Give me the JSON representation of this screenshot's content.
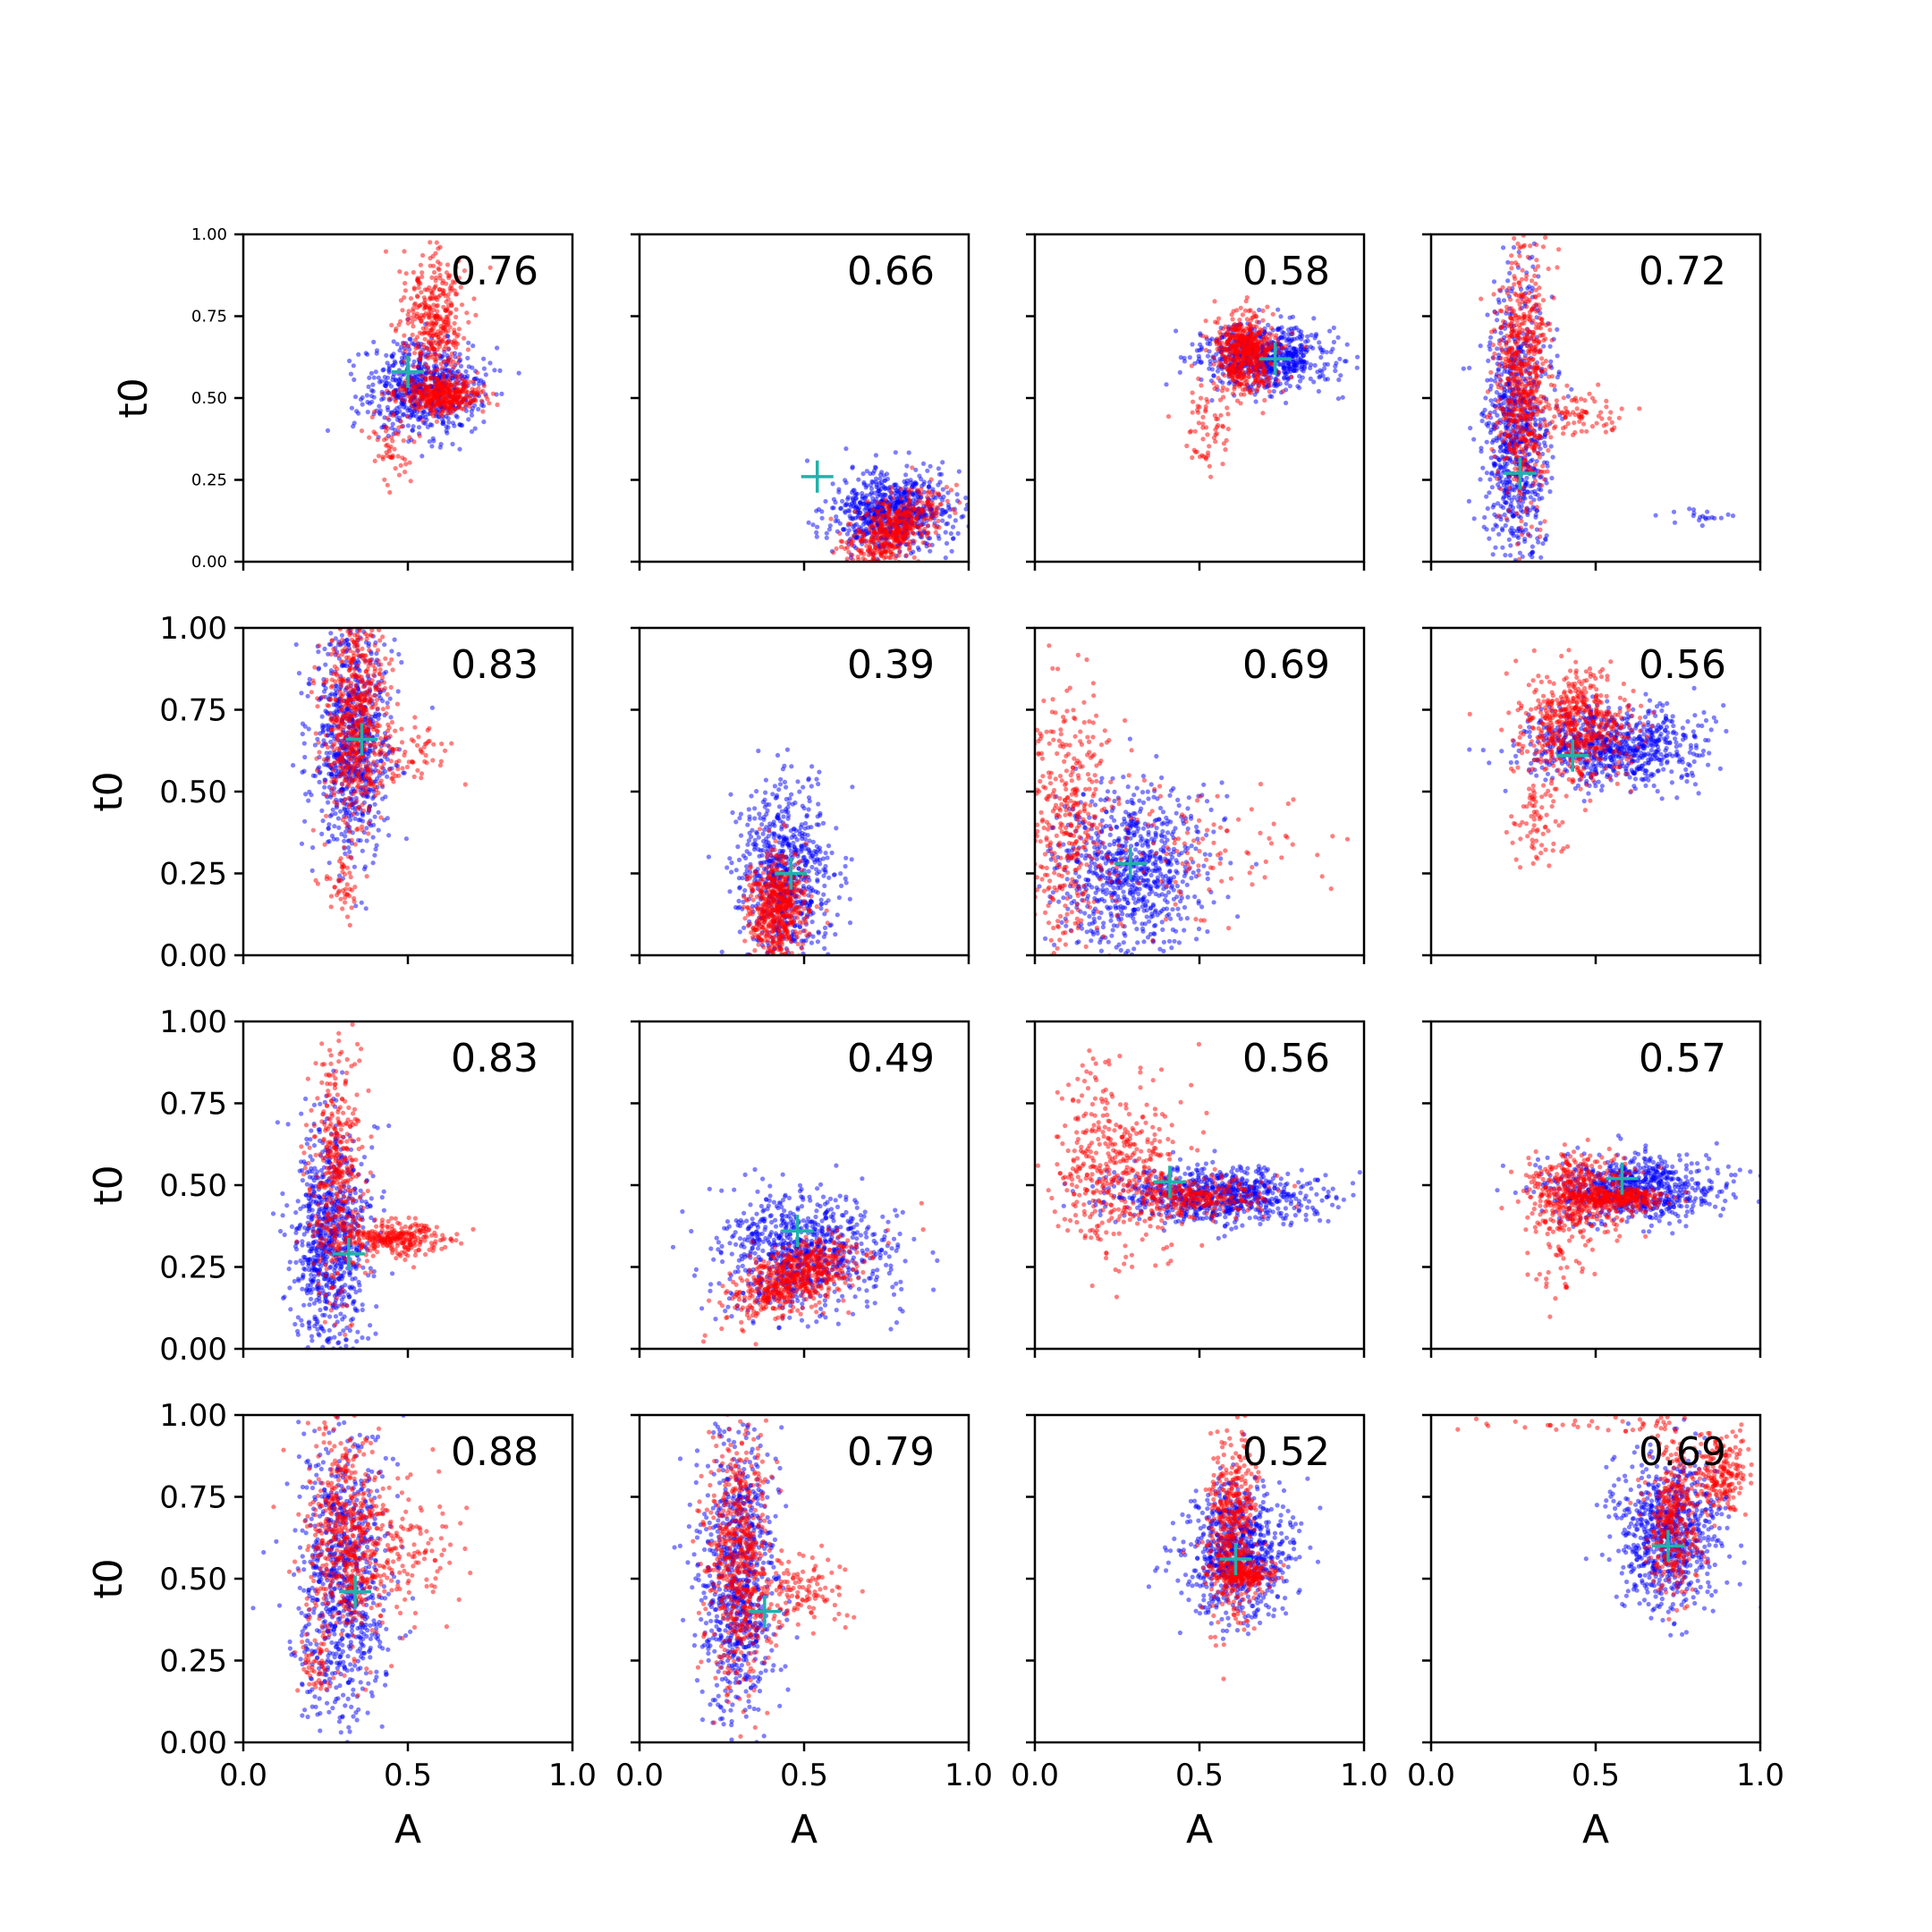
{
  "figure": {
    "title": "",
    "colors": {
      "blue": "#0000ff",
      "red": "#ff0000",
      "marker": "#20b2aa",
      "axis": "#000000"
    }
  },
  "chart_data": [
    {
      "type": "scatter",
      "row": 0,
      "col": 0,
      "xlabel": "",
      "ylabel": "t0",
      "xlim": [
        0,
        1
      ],
      "ylim": [
        0,
        1
      ],
      "annotation": "0.76",
      "xticks": [
        "0.0",
        "0.5",
        "1.0"
      ],
      "yticks": [
        "0.00",
        "0.25",
        "0.50",
        "0.75",
        "1.00"
      ],
      "marker": {
        "x": 0.5,
        "y": 0.58
      },
      "series": [
        {
          "name": "blue",
          "clusters": [
            {
              "cx": 0.55,
              "cy": 0.53,
              "sx": 0.09,
              "sy": 0.07,
              "n": 650
            }
          ]
        },
        {
          "name": "red",
          "clusters": [
            {
              "cx": 0.6,
              "cy": 0.51,
              "sx": 0.06,
              "sy": 0.025,
              "n": 350
            },
            {
              "cx": 0.58,
              "cy": 0.72,
              "sx": 0.05,
              "sy": 0.11,
              "n": 380
            },
            {
              "cx": 0.45,
              "cy": 0.35,
              "sx": 0.03,
              "sy": 0.07,
              "n": 60
            }
          ]
        }
      ]
    },
    {
      "type": "scatter",
      "row": 0,
      "col": 1,
      "xlabel": "",
      "ylabel": "",
      "xlim": [
        0,
        1
      ],
      "ylim": [
        0,
        1
      ],
      "annotation": "0.66",
      "xticks": [
        "0.0",
        "0.5",
        "1.0"
      ],
      "yticks": [],
      "marker": {
        "x": 0.54,
        "y": 0.26
      },
      "series": [
        {
          "name": "blue",
          "clusters": [
            {
              "cx": 0.76,
              "cy": 0.15,
              "sx": 0.09,
              "sy": 0.06,
              "n": 750
            }
          ]
        },
        {
          "name": "red",
          "clusters": [
            {
              "cx": 0.77,
              "cy": 0.1,
              "sx": 0.07,
              "sy": 0.045,
              "n": 480,
              "slope": 0.45
            }
          ]
        }
      ]
    },
    {
      "type": "scatter",
      "row": 0,
      "col": 2,
      "xlabel": "",
      "ylabel": "",
      "xlim": [
        0,
        1
      ],
      "ylim": [
        0,
        1
      ],
      "annotation": "0.58",
      "xticks": [
        "0.0",
        "0.5",
        "1.0"
      ],
      "yticks": [],
      "marker": {
        "x": 0.73,
        "y": 0.62
      },
      "series": [
        {
          "name": "blue",
          "clusters": [
            {
              "cx": 0.7,
              "cy": 0.62,
              "sx": 0.1,
              "sy": 0.05,
              "n": 700
            }
          ]
        },
        {
          "name": "red",
          "clusters": [
            {
              "cx": 0.64,
              "cy": 0.64,
              "sx": 0.045,
              "sy": 0.06,
              "n": 550
            },
            {
              "cx": 0.53,
              "cy": 0.4,
              "sx": 0.04,
              "sy": 0.07,
              "n": 60
            }
          ]
        }
      ]
    },
    {
      "type": "scatter",
      "row": 0,
      "col": 3,
      "xlabel": "",
      "ylabel": "",
      "xlim": [
        0,
        1
      ],
      "ylim": [
        0,
        1
      ],
      "annotation": "0.72",
      "xticks": [
        "0.0",
        "0.5",
        "1.0"
      ],
      "yticks": [],
      "marker": {
        "x": 0.27,
        "y": 0.27
      },
      "series": [
        {
          "name": "blue",
          "clusters": [
            {
              "cx": 0.26,
              "cy": 0.4,
              "sx": 0.05,
              "sy": 0.22,
              "n": 800
            },
            {
              "cx": 0.8,
              "cy": 0.14,
              "sx": 0.06,
              "sy": 0.015,
              "n": 20
            }
          ]
        },
        {
          "name": "red",
          "clusters": [
            {
              "cx": 0.28,
              "cy": 0.55,
              "sx": 0.04,
              "sy": 0.2,
              "n": 650
            },
            {
              "cx": 0.45,
              "cy": 0.45,
              "sx": 0.08,
              "sy": 0.04,
              "n": 80
            }
          ]
        }
      ]
    },
    {
      "type": "scatter",
      "row": 1,
      "col": 0,
      "xlabel": "",
      "ylabel": "t0",
      "xlim": [
        0,
        1
      ],
      "ylim": [
        0,
        1
      ],
      "annotation": "0.83",
      "xticks": [
        "0.0",
        "0.5",
        "1.0"
      ],
      "yticks": [
        "0.00",
        "0.25",
        "0.50",
        "0.75",
        "1.00"
      ],
      "marker": {
        "x": 0.36,
        "y": 0.66
      },
      "series": [
        {
          "name": "blue",
          "clusters": [
            {
              "cx": 0.33,
              "cy": 0.65,
              "sx": 0.06,
              "sy": 0.17,
              "n": 800
            }
          ]
        },
        {
          "name": "red",
          "clusters": [
            {
              "cx": 0.34,
              "cy": 0.72,
              "sx": 0.05,
              "sy": 0.15,
              "n": 600
            },
            {
              "cx": 0.3,
              "cy": 0.25,
              "sx": 0.03,
              "sy": 0.06,
              "n": 50
            },
            {
              "cx": 0.5,
              "cy": 0.6,
              "sx": 0.07,
              "sy": 0.06,
              "n": 60
            }
          ]
        }
      ]
    },
    {
      "type": "scatter",
      "row": 1,
      "col": 1,
      "xlabel": "",
      "ylabel": "",
      "xlim": [
        0,
        1
      ],
      "ylim": [
        0,
        1
      ],
      "annotation": "0.39",
      "xticks": [
        "0.0",
        "0.5",
        "1.0"
      ],
      "yticks": [],
      "marker": {
        "x": 0.46,
        "y": 0.25
      },
      "series": [
        {
          "name": "blue",
          "clusters": [
            {
              "cx": 0.44,
              "cy": 0.25,
              "sx": 0.07,
              "sy": 0.13,
              "n": 700
            }
          ]
        },
        {
          "name": "red",
          "clusters": [
            {
              "cx": 0.42,
              "cy": 0.14,
              "sx": 0.045,
              "sy": 0.08,
              "n": 550
            }
          ]
        }
      ]
    },
    {
      "type": "scatter",
      "row": 1,
      "col": 2,
      "xlabel": "",
      "ylabel": "",
      "xlim": [
        0,
        1
      ],
      "ylim": [
        0,
        1
      ],
      "annotation": "0.69",
      "xticks": [
        "0.0",
        "0.5",
        "1.0"
      ],
      "yticks": [],
      "marker": {
        "x": 0.29,
        "y": 0.28
      },
      "series": [
        {
          "name": "blue",
          "clusters": [
            {
              "cx": 0.28,
              "cy": 0.26,
              "sx": 0.12,
              "sy": 0.13,
              "n": 800
            }
          ]
        },
        {
          "name": "red",
          "clusters": [
            {
              "cx": 0.1,
              "cy": 0.4,
              "sx": 0.07,
              "sy": 0.25,
              "n": 400
            },
            {
              "cx": 0.45,
              "cy": 0.3,
              "sx": 0.2,
              "sy": 0.1,
              "n": 120
            }
          ]
        }
      ]
    },
    {
      "type": "scatter",
      "row": 1,
      "col": 3,
      "xlabel": "",
      "ylabel": "",
      "xlim": [
        0,
        1
      ],
      "ylim": [
        0,
        1
      ],
      "annotation": "0.56",
      "xticks": [
        "0.0",
        "0.5",
        "1.0"
      ],
      "yticks": [],
      "marker": {
        "x": 0.43,
        "y": 0.61
      },
      "series": [
        {
          "name": "blue",
          "clusters": [
            {
              "cx": 0.55,
              "cy": 0.64,
              "sx": 0.13,
              "sy": 0.06,
              "n": 750
            }
          ]
        },
        {
          "name": "red",
          "clusters": [
            {
              "cx": 0.44,
              "cy": 0.7,
              "sx": 0.08,
              "sy": 0.08,
              "n": 550
            },
            {
              "cx": 0.33,
              "cy": 0.42,
              "sx": 0.04,
              "sy": 0.1,
              "n": 80
            }
          ]
        }
      ]
    },
    {
      "type": "scatter",
      "row": 2,
      "col": 0,
      "xlabel": "",
      "ylabel": "t0",
      "xlim": [
        0,
        1
      ],
      "ylim": [
        0,
        1
      ],
      "annotation": "0.83",
      "xticks": [
        "0.0",
        "0.5",
        "1.0"
      ],
      "yticks": [
        "0.00",
        "0.25",
        "0.50",
        "0.75",
        "1.00"
      ],
      "marker": {
        "x": 0.32,
        "y": 0.29
      },
      "series": [
        {
          "name": "blue",
          "clusters": [
            {
              "cx": 0.27,
              "cy": 0.33,
              "sx": 0.06,
              "sy": 0.17,
              "n": 800
            }
          ]
        },
        {
          "name": "red",
          "clusters": [
            {
              "cx": 0.28,
              "cy": 0.55,
              "sx": 0.04,
              "sy": 0.2,
              "n": 400
            },
            {
              "cx": 0.45,
              "cy": 0.34,
              "sx": 0.08,
              "sy": 0.025,
              "n": 300
            }
          ]
        }
      ]
    },
    {
      "type": "scatter",
      "row": 2,
      "col": 1,
      "xlabel": "",
      "ylabel": "",
      "xlim": [
        0,
        1
      ],
      "ylim": [
        0,
        1
      ],
      "annotation": "0.49",
      "xticks": [
        "0.0",
        "0.5",
        "1.0"
      ],
      "yticks": [],
      "marker": {
        "x": 0.48,
        "y": 0.36
      },
      "series": [
        {
          "name": "blue",
          "clusters": [
            {
              "cx": 0.5,
              "cy": 0.3,
              "sx": 0.13,
              "sy": 0.09,
              "n": 800
            }
          ]
        },
        {
          "name": "red",
          "clusters": [
            {
              "cx": 0.48,
              "cy": 0.22,
              "sx": 0.1,
              "sy": 0.05,
              "n": 600,
              "slope": 0.35
            }
          ]
        }
      ]
    },
    {
      "type": "scatter",
      "row": 2,
      "col": 2,
      "xlabel": "",
      "ylabel": "",
      "xlim": [
        0,
        1
      ],
      "ylim": [
        0,
        1
      ],
      "annotation": "0.56",
      "xticks": [
        "0.0",
        "0.5",
        "1.0"
      ],
      "yticks": [],
      "marker": {
        "x": 0.41,
        "y": 0.51
      },
      "series": [
        {
          "name": "blue",
          "clusters": [
            {
              "cx": 0.55,
              "cy": 0.47,
              "sx": 0.15,
              "sy": 0.04,
              "n": 750
            }
          ]
        },
        {
          "name": "red",
          "clusters": [
            {
              "cx": 0.25,
              "cy": 0.55,
              "sx": 0.1,
              "sy": 0.13,
              "n": 450
            },
            {
              "cx": 0.5,
              "cy": 0.46,
              "sx": 0.1,
              "sy": 0.03,
              "n": 250
            }
          ]
        }
      ]
    },
    {
      "type": "scatter",
      "row": 2,
      "col": 3,
      "xlabel": "",
      "ylabel": "",
      "xlim": [
        0,
        1
      ],
      "ylim": [
        0,
        1
      ],
      "annotation": "0.57",
      "xticks": [
        "0.0",
        "0.5",
        "1.0"
      ],
      "yticks": [],
      "marker": {
        "x": 0.58,
        "y": 0.52
      },
      "series": [
        {
          "name": "blue",
          "clusters": [
            {
              "cx": 0.62,
              "cy": 0.49,
              "sx": 0.13,
              "sy": 0.05,
              "n": 750
            }
          ]
        },
        {
          "name": "red",
          "clusters": [
            {
              "cx": 0.45,
              "cy": 0.48,
              "sx": 0.08,
              "sy": 0.06,
              "n": 450
            },
            {
              "cx": 0.58,
              "cy": 0.46,
              "sx": 0.07,
              "sy": 0.015,
              "n": 250
            },
            {
              "cx": 0.4,
              "cy": 0.3,
              "sx": 0.04,
              "sy": 0.08,
              "n": 60
            }
          ]
        }
      ]
    },
    {
      "type": "scatter",
      "row": 3,
      "col": 0,
      "xlabel": "A",
      "ylabel": "t0",
      "xlim": [
        0,
        1
      ],
      "ylim": [
        0,
        1
      ],
      "annotation": "0.88",
      "xticks": [
        "0.0",
        "0.5",
        "1.0"
      ],
      "yticks": [
        "0.00",
        "0.25",
        "0.50",
        "0.75",
        "1.00"
      ],
      "marker": {
        "x": 0.34,
        "y": 0.46
      },
      "series": [
        {
          "name": "blue",
          "clusters": [
            {
              "cx": 0.3,
              "cy": 0.5,
              "sx": 0.07,
              "sy": 0.22,
              "n": 800
            }
          ]
        },
        {
          "name": "red",
          "clusters": [
            {
              "cx": 0.32,
              "cy": 0.62,
              "sx": 0.06,
              "sy": 0.17,
              "n": 550
            },
            {
              "cx": 0.5,
              "cy": 0.58,
              "sx": 0.08,
              "sy": 0.1,
              "n": 120
            },
            {
              "cx": 0.22,
              "cy": 0.25,
              "sx": 0.03,
              "sy": 0.06,
              "n": 60
            }
          ]
        }
      ]
    },
    {
      "type": "scatter",
      "row": 3,
      "col": 1,
      "xlabel": "A",
      "ylabel": "",
      "xlim": [
        0,
        1
      ],
      "ylim": [
        0,
        1
      ],
      "annotation": "0.79",
      "xticks": [
        "0.0",
        "0.5",
        "1.0"
      ],
      "yticks": [],
      "marker": {
        "x": 0.38,
        "y": 0.4
      },
      "series": [
        {
          "name": "blue",
          "clusters": [
            {
              "cx": 0.3,
              "cy": 0.52,
              "sx": 0.06,
              "sy": 0.22,
              "n": 800
            }
          ]
        },
        {
          "name": "red",
          "clusters": [
            {
              "cx": 0.3,
              "cy": 0.55,
              "sx": 0.05,
              "sy": 0.2,
              "n": 600
            },
            {
              "cx": 0.5,
              "cy": 0.47,
              "sx": 0.07,
              "sy": 0.06,
              "n": 120
            }
          ]
        }
      ]
    },
    {
      "type": "scatter",
      "row": 3,
      "col": 2,
      "xlabel": "A",
      "ylabel": "",
      "xlim": [
        0,
        1
      ],
      "ylim": [
        0,
        1
      ],
      "annotation": "0.52",
      "xticks": [
        "0.0",
        "0.5",
        "1.0"
      ],
      "yticks": [],
      "marker": {
        "x": 0.61,
        "y": 0.56
      },
      "series": [
        {
          "name": "blue",
          "clusters": [
            {
              "cx": 0.62,
              "cy": 0.58,
              "sx": 0.08,
              "sy": 0.1,
              "n": 750
            }
          ]
        },
        {
          "name": "red",
          "clusters": [
            {
              "cx": 0.6,
              "cy": 0.65,
              "sx": 0.04,
              "sy": 0.15,
              "n": 450
            },
            {
              "cx": 0.64,
              "cy": 0.51,
              "sx": 0.05,
              "sy": 0.02,
              "n": 200
            }
          ]
        }
      ]
    },
    {
      "type": "scatter",
      "row": 3,
      "col": 3,
      "xlabel": "A",
      "ylabel": "",
      "xlim": [
        0,
        1
      ],
      "ylim": [
        0,
        1
      ],
      "annotation": "0.69",
      "xticks": [
        "0.0",
        "0.5",
        "1.0"
      ],
      "yticks": [],
      "marker": {
        "x": 0.72,
        "y": 0.6
      },
      "series": [
        {
          "name": "blue",
          "clusters": [
            {
              "cx": 0.72,
              "cy": 0.64,
              "sx": 0.08,
              "sy": 0.11,
              "n": 750
            }
          ]
        },
        {
          "name": "red",
          "clusters": [
            {
              "cx": 0.74,
              "cy": 0.68,
              "sx": 0.04,
              "sy": 0.12,
              "n": 350
            },
            {
              "cx": 0.88,
              "cy": 0.82,
              "sx": 0.04,
              "sy": 0.06,
              "n": 200
            },
            {
              "cx": 0.55,
              "cy": 0.97,
              "sx": 0.18,
              "sy": 0.015,
              "n": 40
            }
          ]
        }
      ]
    }
  ]
}
